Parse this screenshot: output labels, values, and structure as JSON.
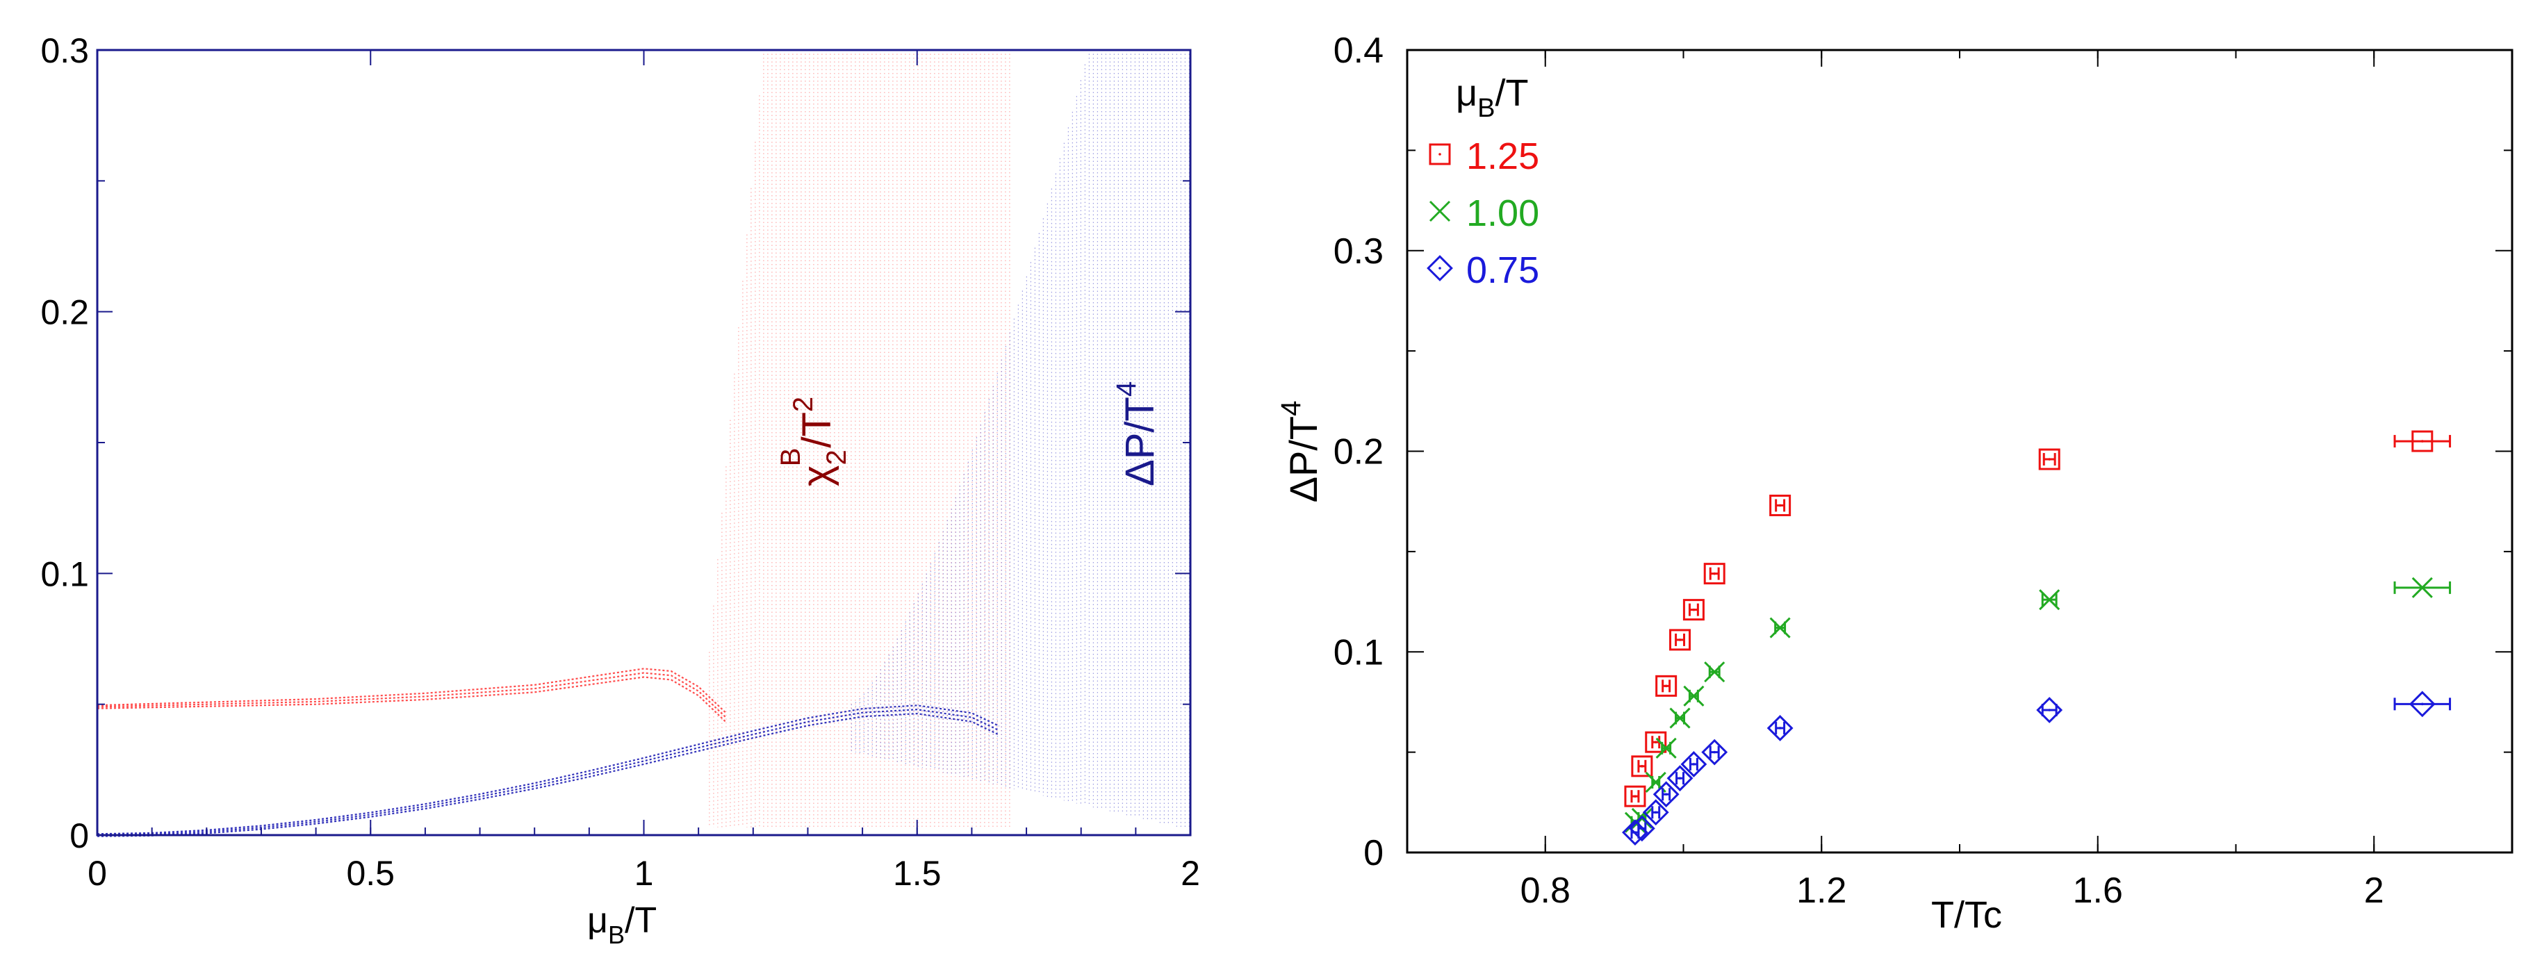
{
  "chart_data": [
    {
      "type": "line",
      "x_label": {
        "main": "μ",
        "sub": "B",
        "rest": "/T"
      },
      "xlim": [
        0,
        2
      ],
      "ylim": [
        0,
        0.3
      ],
      "x_ticks": [
        {
          "value": 0,
          "label": "0"
        },
        {
          "value": 0.5,
          "label": "0.5"
        },
        {
          "value": 1,
          "label": "1"
        },
        {
          "value": 1.5,
          "label": "1.5"
        },
        {
          "value": 2,
          "label": "2"
        }
      ],
      "y_ticks": [
        {
          "value": 0,
          "label": "0"
        },
        {
          "value": 0.1,
          "label": "0.1"
        },
        {
          "value": 0.2,
          "label": "0.2"
        },
        {
          "value": 0.3,
          "label": "0.3"
        }
      ],
      "annotations": [
        {
          "main": "χ",
          "sub": "2",
          "sup": "B",
          "rest": "/T",
          "sup2": "2",
          "color": "#8b0000"
        },
        {
          "main": "ΔP/T",
          "sup": "4",
          "color": "#1a1a8c"
        }
      ],
      "series": [
        {
          "name": "chi2B/T2",
          "color": "#ff4d4d",
          "x": [
            0,
            0.2,
            0.4,
            0.6,
            0.8,
            0.9,
            1.0,
            1.05,
            1.1,
            1.15
          ],
          "y": [
            0.049,
            0.05,
            0.051,
            0.053,
            0.056,
            0.059,
            0.062,
            0.061,
            0.055,
            0.045
          ],
          "band_x_start": 1.12,
          "band_x_end": 1.67,
          "band_color": "#ff9999"
        },
        {
          "name": "DeltaP/T4",
          "color": "#3333bb",
          "x": [
            0,
            0.1,
            0.2,
            0.3,
            0.4,
            0.5,
            0.6,
            0.7,
            0.8,
            0.9,
            1.0,
            1.1,
            1.2,
            1.3,
            1.4,
            1.5,
            1.6,
            1.65
          ],
          "y": [
            0,
            0.0003,
            0.0013,
            0.0029,
            0.0051,
            0.0078,
            0.011,
            0.0147,
            0.0188,
            0.0234,
            0.0283,
            0.0334,
            0.0385,
            0.0433,
            0.0468,
            0.048,
            0.045,
            0.04
          ],
          "band_x_start": 1.38,
          "band_x_end": 2.0,
          "band_color": "#8888dd"
        }
      ]
    },
    {
      "type": "scatter",
      "x_label": "T/Tc",
      "y_label": {
        "main": "ΔP/T",
        "sup": "4"
      },
      "xlim": [
        0.6,
        2.2
      ],
      "ylim": [
        0,
        0.4
      ],
      "x_ticks": [
        {
          "value": 0.8,
          "label": "0.8"
        },
        {
          "value": 1.2,
          "label": "1.2"
        },
        {
          "value": 1.6,
          "label": "1.6"
        },
        {
          "value": 2,
          "label": "2"
        }
      ],
      "y_ticks": [
        {
          "value": 0,
          "label": "0"
        },
        {
          "value": 0.1,
          "label": "0.1"
        },
        {
          "value": 0.2,
          "label": "0.2"
        },
        {
          "value": 0.3,
          "label": "0.3"
        },
        {
          "value": 0.4,
          "label": "0.4"
        }
      ],
      "legend": {
        "title_main": "μ",
        "title_sub": "B",
        "title_rest": "/T",
        "position": "top-left"
      },
      "series": [
        {
          "name": "1.25",
          "marker": "square",
          "color": "#ee1111",
          "points": [
            {
              "x": 0.93,
              "y": 0.028,
              "xerr": 0.005
            },
            {
              "x": 0.94,
              "y": 0.043,
              "xerr": 0.005
            },
            {
              "x": 0.96,
              "y": 0.055,
              "xerr": 0.005
            },
            {
              "x": 0.975,
              "y": 0.083,
              "xerr": 0.005
            },
            {
              "x": 0.995,
              "y": 0.106,
              "xerr": 0.006
            },
            {
              "x": 1.015,
              "y": 0.121,
              "xerr": 0.006
            },
            {
              "x": 1.045,
              "y": 0.139,
              "xerr": 0.006
            },
            {
              "x": 1.14,
              "y": 0.173,
              "xerr": 0.006
            },
            {
              "x": 1.53,
              "y": 0.196,
              "xerr": 0.008
            },
            {
              "x": 2.07,
              "y": 0.205,
              "xerr": 0.04
            }
          ]
        },
        {
          "name": "1.00",
          "marker": "x",
          "color": "#22aa22",
          "points": [
            {
              "x": 0.93,
              "y": 0.015,
              "xerr": 0.005
            },
            {
              "x": 0.94,
              "y": 0.017,
              "xerr": 0.005
            },
            {
              "x": 0.96,
              "y": 0.035,
              "xerr": 0.005
            },
            {
              "x": 0.975,
              "y": 0.052,
              "xerr": 0.006
            },
            {
              "x": 0.995,
              "y": 0.067,
              "xerr": 0.006
            },
            {
              "x": 1.015,
              "y": 0.078,
              "xerr": 0.006
            },
            {
              "x": 1.045,
              "y": 0.09,
              "xerr": 0.007
            },
            {
              "x": 1.14,
              "y": 0.112,
              "xerr": 0.007
            },
            {
              "x": 1.53,
              "y": 0.126,
              "xerr": 0.01
            },
            {
              "x": 2.07,
              "y": 0.132,
              "xerr": 0.04
            }
          ]
        },
        {
          "name": "0.75",
          "marker": "diamond",
          "color": "#1a1adb",
          "points": [
            {
              "x": 0.93,
              "y": 0.01,
              "xerr": 0.005
            },
            {
              "x": 0.94,
              "y": 0.012,
              "xerr": 0.005
            },
            {
              "x": 0.96,
              "y": 0.02,
              "xerr": 0.005
            },
            {
              "x": 0.975,
              "y": 0.029,
              "xerr": 0.005
            },
            {
              "x": 0.995,
              "y": 0.037,
              "xerr": 0.005
            },
            {
              "x": 1.015,
              "y": 0.044,
              "xerr": 0.005
            },
            {
              "x": 1.045,
              "y": 0.05,
              "xerr": 0.006
            },
            {
              "x": 1.14,
              "y": 0.062,
              "xerr": 0.006
            },
            {
              "x": 1.53,
              "y": 0.071,
              "xerr": 0.01
            },
            {
              "x": 2.07,
              "y": 0.074,
              "xerr": 0.04
            }
          ]
        }
      ]
    }
  ]
}
